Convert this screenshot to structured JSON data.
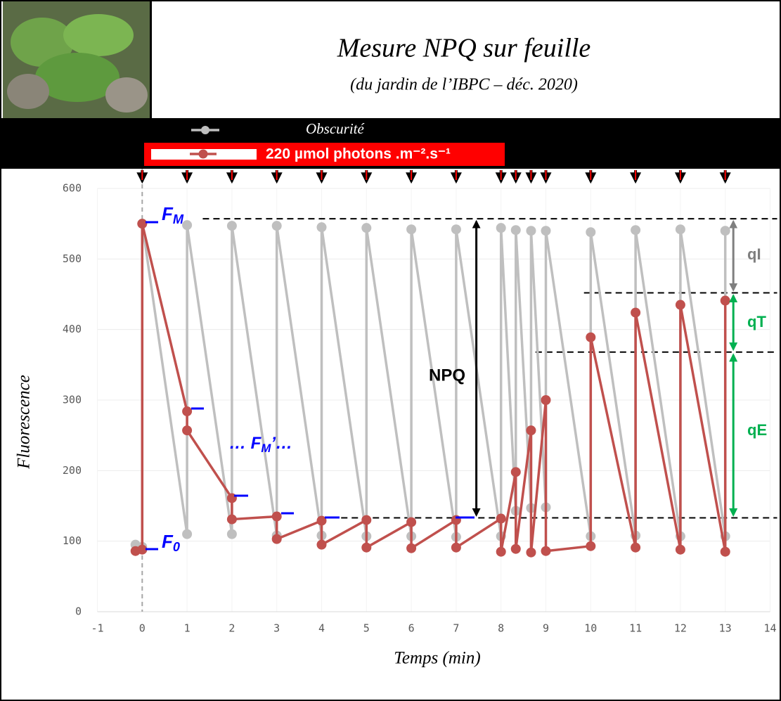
{
  "chart_data": {
    "type": "line",
    "title": "Mesure NPQ sur feuille",
    "subtitle": "(du jardin de l’IBPC – déc. 2020)",
    "x_label": "Temps (min)",
    "y_label": "Fluorescence",
    "xlim": [
      -1,
      14
    ],
    "xticks": [
      -1,
      0,
      1,
      2,
      3,
      4,
      5,
      6,
      7,
      8,
      9,
      10,
      11,
      12,
      13,
      14
    ],
    "ylim": [
      0,
      600
    ],
    "yticks": [
      0,
      100,
      200,
      300,
      400,
      500,
      600
    ],
    "grid": true,
    "series": [
      {
        "name": "Obscurité",
        "color": "#bfbfbf",
        "x": [
          -0.15,
          0,
          0,
          1,
          1,
          2,
          2,
          3,
          3,
          4,
          4,
          5,
          5,
          6,
          6,
          7,
          7,
          8,
          8,
          8.33,
          8.33,
          8.67,
          8.67,
          9,
          9,
          10,
          10,
          11,
          11,
          12,
          12,
          13,
          13
        ],
        "values": [
          95,
          92,
          550,
          110,
          548,
          110,
          547,
          108,
          547,
          108,
          545,
          107,
          544,
          107,
          542,
          106,
          542,
          107,
          544,
          143,
          541,
          147,
          540,
          148,
          540,
          107,
          538,
          108,
          541,
          107,
          542,
          107,
          540
        ]
      },
      {
        "name": "220 µmol photons .m⁻².s⁻¹",
        "color": "#c0504d",
        "x": [
          -0.15,
          0,
          0,
          1,
          1,
          2,
          2,
          3,
          3,
          4,
          4,
          5,
          5,
          6,
          6,
          7,
          7,
          8,
          8,
          8.33,
          8.33,
          8.67,
          8.67,
          9,
          9,
          10,
          10,
          11,
          11,
          12,
          12,
          13,
          13
        ],
        "values": [
          86,
          88,
          550,
          284,
          257,
          161,
          131,
          135,
          103,
          129,
          95,
          130,
          91,
          127,
          90,
          130,
          91,
          132,
          85,
          198,
          89,
          257,
          84,
          300,
          86,
          93,
          389,
          91,
          424,
          88,
          435,
          85,
          441
        ]
      }
    ],
    "pulse_times": [
      0,
      1,
      2,
      3,
      4,
      5,
      6,
      7,
      8,
      8.33,
      8.67,
      9,
      10,
      11,
      12,
      13
    ],
    "reference_lines": [
      {
        "y": 557,
        "x_start": 1.35
      },
      {
        "y": 452,
        "x_start": 9.85
      },
      {
        "y": 368,
        "x_start": 8.77
      },
      {
        "y": 133,
        "x_start": 4.2
      }
    ],
    "annotations": {
      "fm": {
        "main": "F",
        "sub": "M"
      },
      "f0": {
        "main": "F",
        "sub": "0"
      },
      "fm_prime": {
        "pre": "… F",
        "sub": "M",
        "post": "’…"
      },
      "npq": "NPQ",
      "qi": "qI",
      "qt": "qT",
      "qe": "qE"
    }
  }
}
